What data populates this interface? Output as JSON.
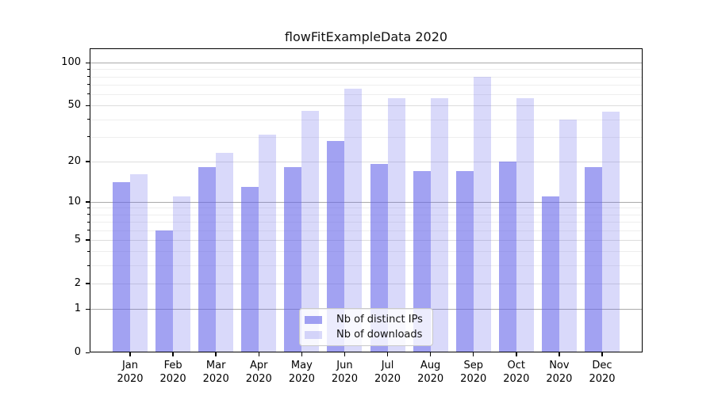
{
  "title": "flowFitExampleData 2020",
  "chart_data": {
    "type": "bar",
    "title": "flowFitExampleData 2020",
    "x_labels": [
      [
        "Jan",
        "2020"
      ],
      [
        "Feb",
        "2020"
      ],
      [
        "Mar",
        "2020"
      ],
      [
        "Apr",
        "2020"
      ],
      [
        "May",
        "2020"
      ],
      [
        "Jun",
        "2020"
      ],
      [
        "Jul",
        "2020"
      ],
      [
        "Aug",
        "2020"
      ],
      [
        "Sep",
        "2020"
      ],
      [
        "Oct",
        "2020"
      ],
      [
        "Nov",
        "2020"
      ],
      [
        "Dec",
        "2020"
      ]
    ],
    "series": [
      {
        "name": "Nb of distinct IPs",
        "color": "rgba(100,100,233,0.60)",
        "values": [
          14,
          6,
          18,
          13,
          18,
          28,
          19,
          17,
          17,
          20,
          11,
          18
        ]
      },
      {
        "name": "Nb of downloads",
        "color": "rgba(100,100,233,0.245)",
        "values": [
          16,
          11,
          23,
          31,
          46,
          66,
          56,
          56,
          80,
          56,
          40,
          45
        ]
      }
    ],
    "y_ticks": [
      0,
      1,
      2,
      5,
      10,
      20,
      50,
      100
    ],
    "y_minor_gridlines": [
      3,
      4,
      6,
      7,
      8,
      9,
      30,
      40,
      60,
      70,
      80,
      90
    ],
    "y_scale": "log10(value+1)",
    "ylim": [
      0,
      126
    ],
    "xlabel": "",
    "ylabel": "",
    "grid": "on",
    "legend_position": "bottom-center-inside",
    "colors": {
      "bars_base": "#6464e9",
      "grid_major": "#aaaaaa",
      "grid_mid": "#dddddd",
      "grid_minor": "#eeeeee",
      "axis": "#000000"
    }
  }
}
